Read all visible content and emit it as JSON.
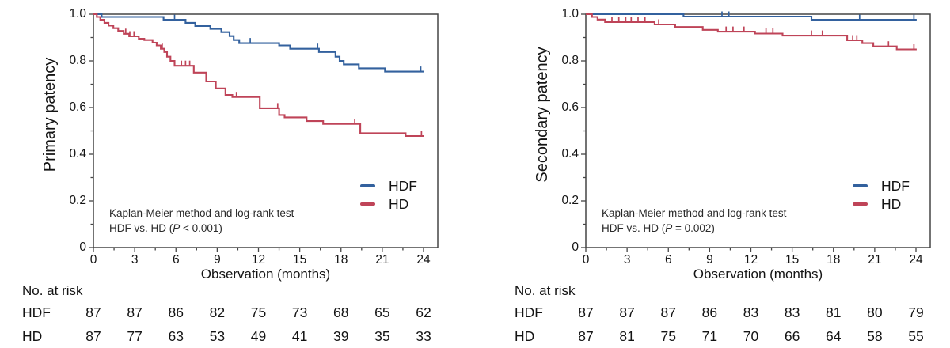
{
  "figure": {
    "background": "#ffffff",
    "frame_color": "#454545",
    "text_color": "#141414"
  },
  "chart_data": [
    {
      "type": "line",
      "subtype": "kaplan-meier-step",
      "ylabel": "Primary patency",
      "xlabel": "Observation (months)",
      "xticks": [
        0,
        3,
        6,
        9,
        12,
        15,
        18,
        21,
        24
      ],
      "ytick_values": [
        1.0,
        0.8,
        0.6,
        0.4,
        0.2,
        0
      ],
      "ytick_labels": [
        "1.0",
        "0.8",
        "0.6",
        "0.4",
        "0.2",
        "0"
      ],
      "xlim": [
        0,
        25
      ],
      "ylim": [
        0,
        1
      ],
      "grid": false,
      "legend_position": "inside-lower-right",
      "annotation": [
        "Kaplan-Meier method and log-rank test",
        "HDF vs. HD (P < 0.001)"
      ],
      "legend": [
        {
          "label": "HDF",
          "color": "#33619e"
        },
        {
          "label": "HD",
          "color": "#bf4458"
        }
      ],
      "series": [
        {
          "name": "HDF",
          "color": "#33619e",
          "steps": [
            [
              0,
              1.0
            ],
            [
              0.6,
              0.988
            ],
            [
              5.1,
              0.976
            ],
            [
              6.7,
              0.963
            ],
            [
              7.4,
              0.949
            ],
            [
              8.5,
              0.937
            ],
            [
              9.3,
              0.923
            ],
            [
              9.9,
              0.906
            ],
            [
              10.2,
              0.889
            ],
            [
              10.6,
              0.876
            ],
            [
              13.5,
              0.866
            ],
            [
              14.3,
              0.852
            ],
            [
              16.4,
              0.838
            ],
            [
              17.6,
              0.818
            ],
            [
              17.9,
              0.8
            ],
            [
              18.2,
              0.785
            ],
            [
              19.3,
              0.768
            ],
            [
              21.2,
              0.754
            ],
            [
              24.05,
              0.754
            ]
          ],
          "censor_months": [
            5.9,
            11.4,
            16.3,
            23.8
          ]
        },
        {
          "name": "HD",
          "color": "#bf4458",
          "steps": [
            [
              0,
              1.0
            ],
            [
              0.25,
              0.988
            ],
            [
              0.5,
              0.976
            ],
            [
              0.8,
              0.963
            ],
            [
              1.1,
              0.951
            ],
            [
              1.45,
              0.94
            ],
            [
              1.8,
              0.928
            ],
            [
              2.2,
              0.916
            ],
            [
              2.6,
              0.905
            ],
            [
              3.3,
              0.895
            ],
            [
              3.7,
              0.889
            ],
            [
              4.3,
              0.878
            ],
            [
              4.6,
              0.866
            ],
            [
              4.9,
              0.852
            ],
            [
              5.15,
              0.838
            ],
            [
              5.35,
              0.818
            ],
            [
              5.6,
              0.8
            ],
            [
              5.9,
              0.779
            ],
            [
              7.3,
              0.75
            ],
            [
              8.2,
              0.712
            ],
            [
              8.9,
              0.682
            ],
            [
              9.6,
              0.654
            ],
            [
              10.1,
              0.645
            ],
            [
              12.1,
              0.597
            ],
            [
              13.5,
              0.568
            ],
            [
              13.9,
              0.558
            ],
            [
              15.5,
              0.542
            ],
            [
              16.7,
              0.53
            ],
            [
              19.4,
              0.49
            ],
            [
              22.7,
              0.478
            ],
            [
              24.05,
              0.478
            ]
          ],
          "censor_months": [
            2.35,
            2.65,
            2.95,
            5.0,
            6.4,
            6.7,
            7.0,
            10.4,
            13.4,
            19.0,
            23.85
          ]
        }
      ],
      "risk_table": {
        "title": "No. at risk",
        "rows": [
          {
            "label": "HDF",
            "values": [
              87,
              87,
              86,
              82,
              75,
              73,
              68,
              65,
              62
            ]
          },
          {
            "label": "HD",
            "values": [
              87,
              77,
              63,
              53,
              49,
              41,
              39,
              35,
              33
            ]
          }
        ]
      }
    },
    {
      "type": "line",
      "subtype": "kaplan-meier-step",
      "ylabel": "Secondary patency",
      "xlabel": "Observation (months)",
      "xticks": [
        0,
        3,
        6,
        9,
        12,
        15,
        18,
        21,
        24
      ],
      "ytick_values": [
        1.0,
        0.8,
        0.6,
        0.4,
        0.2,
        0
      ],
      "ytick_labels": [
        "1.0",
        "0.8",
        "0.6",
        "0.4",
        "0.2",
        "0"
      ],
      "xlim": [
        0,
        25
      ],
      "ylim": [
        0,
        1
      ],
      "grid": false,
      "legend_position": "inside-lower-right",
      "annotation": [
        "Kaplan-Meier method and log-rank test",
        "HDF vs. HD (P = 0.002)"
      ],
      "legend": [
        {
          "label": "HDF",
          "color": "#33619e"
        },
        {
          "label": "HD",
          "color": "#bf4458"
        }
      ],
      "series": [
        {
          "name": "HDF",
          "color": "#33619e",
          "steps": [
            [
              0,
              1.0
            ],
            [
              7.1,
              0.99
            ],
            [
              16.4,
              0.976
            ],
            [
              24.05,
              0.976
            ]
          ],
          "censor_months": [
            9.9,
            10.4,
            19.9,
            23.85
          ]
        },
        {
          "name": "HD",
          "color": "#bf4458",
          "steps": [
            [
              0,
              1.0
            ],
            [
              0.45,
              0.988
            ],
            [
              0.85,
              0.977
            ],
            [
              1.4,
              0.966
            ],
            [
              5.0,
              0.956
            ],
            [
              6.5,
              0.945
            ],
            [
              8.5,
              0.933
            ],
            [
              9.6,
              0.925
            ],
            [
              12.3,
              0.917
            ],
            [
              14.3,
              0.908
            ],
            [
              19.0,
              0.888
            ],
            [
              20.1,
              0.876
            ],
            [
              20.9,
              0.862
            ],
            [
              22.6,
              0.849
            ],
            [
              24.05,
              0.849
            ]
          ],
          "censor_months": [
            1.9,
            2.4,
            2.9,
            3.3,
            3.8,
            4.3,
            5.3,
            10.2,
            10.7,
            11.5,
            13.1,
            13.6,
            16.4,
            17.2,
            19.4,
            19.7,
            22.0,
            23.85
          ]
        }
      ],
      "risk_table": {
        "title": "No. at risk",
        "rows": [
          {
            "label": "HDF",
            "values": [
              87,
              87,
              87,
              86,
              83,
              83,
              81,
              80,
              79
            ]
          },
          {
            "label": "HD",
            "values": [
              87,
              81,
              75,
              71,
              70,
              66,
              64,
              58,
              55
            ]
          }
        ]
      }
    }
  ]
}
